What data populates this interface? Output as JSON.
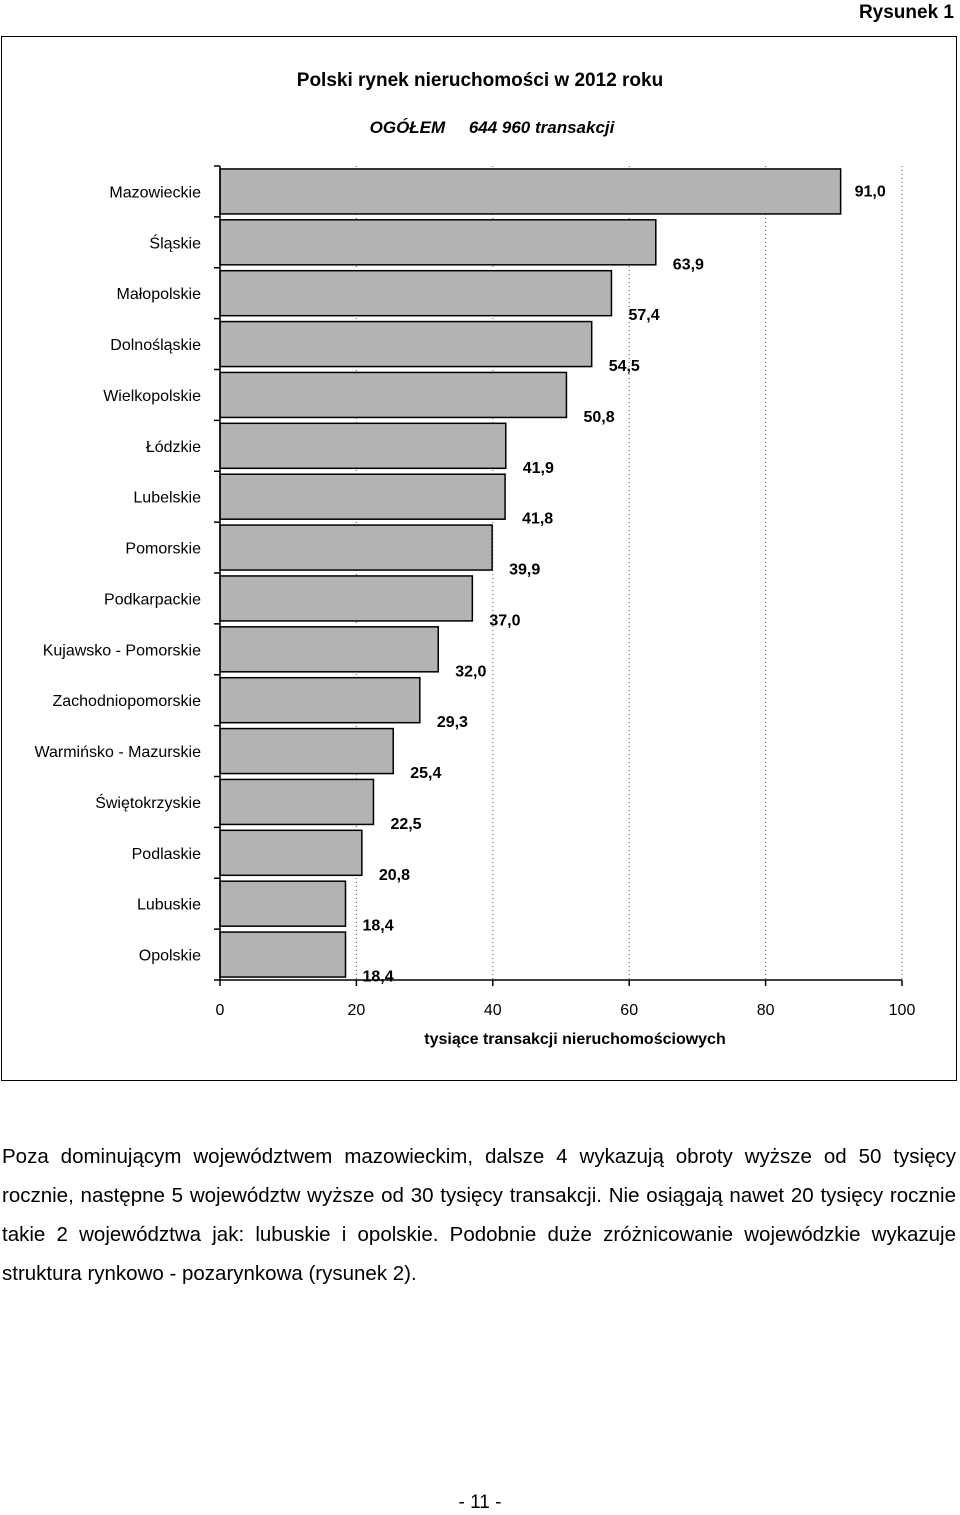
{
  "figure_label": "Rysunek 1",
  "chart_data": {
    "type": "bar",
    "orientation": "horizontal",
    "title": "Polski rynek nieruchomości w 2012 roku",
    "subtitle_prefix": "OGÓŁEM",
    "subtitle_value": "644 960 transakcji",
    "xlabel": "tysiące transakcji nieruchomościowych",
    "xlim": [
      0,
      100
    ],
    "xticks": [
      "0",
      "20",
      "40",
      "60",
      "80",
      "100"
    ],
    "grid": "vertical-dotted",
    "categories": [
      "Mazowieckie",
      "Śląskie",
      "Małopolskie",
      "Dolnośląskie",
      "Wielkopolskie",
      "Łódzkie",
      "Lubelskie",
      "Pomorskie",
      "Podkarpackie",
      "Kujawsko - Pomorskie",
      "Zachodniopomorskie",
      "Warmińsko - Mazurskie",
      "Świętokrzyskie",
      "Podlaskie",
      "Lubuskie",
      "Opolskie"
    ],
    "values": [
      91.0,
      63.9,
      57.4,
      54.5,
      50.8,
      41.9,
      41.8,
      39.9,
      37.0,
      32.0,
      29.3,
      25.4,
      22.5,
      20.8,
      18.4,
      18.4
    ],
    "value_labels": [
      "91,0",
      "63,9",
      "57,4",
      "54,5",
      "50,8",
      "41,9",
      "41,8",
      "39,9",
      "37,0",
      "32,0",
      "29,3",
      "25,4",
      "22,5",
      "20,8",
      "18,4",
      "18,4"
    ],
    "bar_color": "#b3b3b3"
  },
  "paragraph": "Poza dominującym województwem mazowieckim, dalsze 4 wykazują obroty wyższe od 50 tysięcy rocznie, następne 5 województw wyższe od 30 tysięcy transakcji. Nie osiągają nawet 20 tysięcy rocznie takie 2 województwa jak: lubuskie i opolskie. Podobnie duże zróżnicowanie wojewódzkie wykazuje struktura rynkowo - pozarynkowa (rysunek 2).",
  "page_number": "- 11 -"
}
